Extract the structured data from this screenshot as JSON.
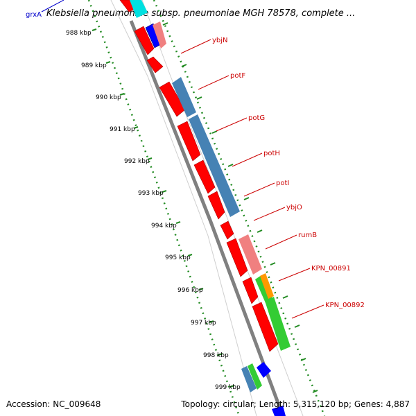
{
  "title": "Klebsiella pneumoniae subsp. pneumoniae MGH 78578, complete ...",
  "corner_gene": "grxA",
  "ticks": [
    "988 kbp",
    "989 kbp",
    "990 kbp",
    "991 kbp",
    "992 kbp",
    "993 kbp",
    "994 kbp",
    "995 kbp",
    "996 kbp",
    "997 kbp",
    "998 kbp",
    "999 kbp"
  ],
  "genes": [
    "ybjN",
    "potF",
    "potG",
    "potH",
    "potI",
    "ybjO",
    "rumB",
    "KPN_00891",
    "KPN_00892"
  ],
  "footer": {
    "accession": "Accession: NC_009648",
    "stats": "Topology: circular; Length: 5,315,120 bp; Genes: 4,887"
  },
  "colors": {
    "cds": "#ff0000",
    "cds_light": "#f08080",
    "track_blue": "#4682b4",
    "track_green": "#33cc33",
    "track_orange": "#ff9900",
    "track_navy": "#0000ff",
    "backbone": "#808080",
    "tick_green": "#228b22",
    "label_red": "#cc0000",
    "link_blue": "#0000cc"
  }
}
